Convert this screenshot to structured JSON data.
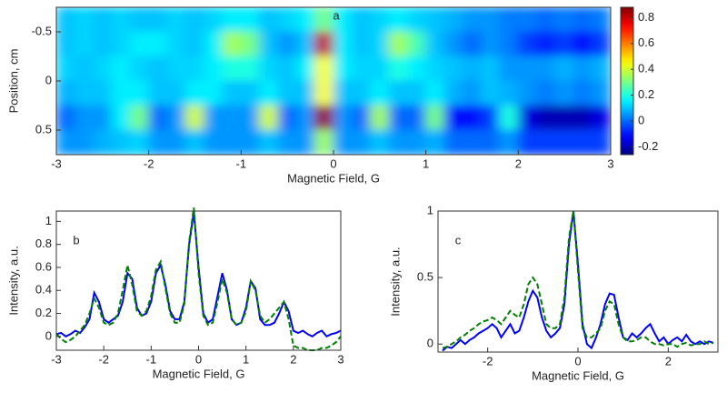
{
  "chart_data": [
    {
      "type": "heatmap",
      "annotation": "a",
      "xlabel": "Magnetic Field, G",
      "ylabel": "Position, cm",
      "colormap": "jet",
      "y_reversed": true,
      "xlim": [
        -3,
        3
      ],
      "xticks": [
        -3,
        -2,
        -1,
        0,
        1,
        2,
        3
      ],
      "ylim": [
        -0.75,
        0.75
      ],
      "yticks": [
        -0.5,
        0,
        0.5
      ],
      "clim": [
        -0.26,
        0.88
      ],
      "cticks": [
        -0.2,
        0,
        0.2,
        0.4,
        0.6,
        0.8
      ],
      "x": [
        -2.9,
        -2.7,
        -2.5,
        -2.3,
        -2.1,
        -1.9,
        -1.7,
        -1.5,
        -1.3,
        -1.1,
        -0.9,
        -0.7,
        -0.5,
        -0.3,
        -0.1,
        0.1,
        0.3,
        0.5,
        0.7,
        0.9,
        1.1,
        1.3,
        1.5,
        1.7,
        1.9,
        2.1,
        2.3,
        2.5,
        2.7,
        2.9
      ],
      "y": [
        -0.625,
        -0.375,
        -0.125,
        0.125,
        0.375,
        0.625
      ],
      "z": [
        [
          0.1,
          0.12,
          0.1,
          0.12,
          0.1,
          0.1,
          0.12,
          0.1,
          0.12,
          0.15,
          0.15,
          0.1,
          0.12,
          0.15,
          0.3,
          0.15,
          0.1,
          0.12,
          0.15,
          0.12,
          0.1,
          0.08,
          0.05,
          0.05,
          0.02,
          0.02,
          0.0,
          0.02,
          0.0,
          0.02
        ],
        [
          0.1,
          0.12,
          0.1,
          0.12,
          0.15,
          0.15,
          0.12,
          0.1,
          0.15,
          0.35,
          0.3,
          0.1,
          0.05,
          0.1,
          0.8,
          0.15,
          0.1,
          0.12,
          0.35,
          0.25,
          0.1,
          0.05,
          0.0,
          0.05,
          0.02,
          -0.05,
          -0.08,
          -0.05,
          -0.1,
          -0.05
        ],
        [
          0.12,
          0.1,
          0.12,
          0.15,
          0.12,
          0.1,
          0.12,
          0.12,
          0.15,
          0.2,
          0.2,
          0.12,
          0.1,
          0.15,
          0.45,
          0.15,
          0.12,
          0.12,
          0.2,
          0.15,
          0.12,
          0.1,
          0.08,
          0.1,
          0.05,
          0.05,
          0.05,
          0.08,
          0.05,
          0.08
        ],
        [
          0.08,
          0.1,
          0.1,
          0.15,
          0.15,
          0.1,
          0.1,
          0.15,
          0.15,
          0.1,
          0.1,
          0.15,
          0.1,
          0.1,
          0.45,
          0.1,
          0.1,
          0.15,
          0.1,
          0.1,
          0.15,
          0.08,
          0.05,
          0.1,
          0.08,
          0.05,
          0.02,
          0.05,
          0.02,
          0.05
        ],
        [
          0.0,
          0.05,
          0.05,
          0.15,
          0.3,
          0.0,
          0.05,
          0.4,
          0.05,
          0.05,
          0.05,
          0.4,
          0.0,
          0.05,
          0.85,
          0.05,
          0.0,
          0.35,
          0.0,
          0.0,
          0.3,
          -0.1,
          -0.1,
          -0.05,
          0.2,
          -0.15,
          -0.2,
          -0.2,
          -0.2,
          -0.15
        ],
        [
          0.05,
          0.05,
          0.08,
          0.1,
          0.12,
          0.05,
          0.05,
          0.1,
          0.05,
          0.05,
          0.05,
          0.1,
          0.05,
          0.05,
          0.35,
          0.05,
          0.05,
          0.1,
          0.05,
          0.05,
          0.08,
          0.0,
          0.0,
          0.0,
          0.05,
          -0.05,
          -0.05,
          -0.05,
          -0.05,
          -0.05
        ]
      ]
    },
    {
      "type": "line",
      "annotation": "b",
      "xlabel": "Magnetic Field, G",
      "ylabel": "Intensity, a.u.",
      "xlim": [
        -3,
        3
      ],
      "xticks": [
        -3,
        -2,
        -1,
        0,
        1,
        2,
        3
      ],
      "ylim": [
        -0.12,
        1.09
      ],
      "yticks": [
        0,
        0.2,
        0.4,
        0.6,
        0.8,
        1
      ],
      "x": [
        -3,
        -2.9,
        -2.8,
        -2.7,
        -2.6,
        -2.5,
        -2.4,
        -2.3,
        -2.2,
        -2.1,
        -2,
        -1.9,
        -1.8,
        -1.7,
        -1.6,
        -1.5,
        -1.4,
        -1.3,
        -1.2,
        -1.1,
        -1,
        -0.9,
        -0.8,
        -0.7,
        -0.6,
        -0.5,
        -0.4,
        -0.3,
        -0.2,
        -0.1,
        0,
        0.1,
        0.2,
        0.3,
        0.4,
        0.5,
        0.6,
        0.7,
        0.8,
        0.9,
        1,
        1.1,
        1.2,
        1.3,
        1.4,
        1.5,
        1.6,
        1.7,
        1.8,
        1.9,
        2,
        2.1,
        2.2,
        2.3,
        2.4,
        2.5,
        2.6,
        2.7,
        2.8,
        2.9,
        3
      ],
      "series": [
        {
          "color": "#0000ff",
          "dashed": false,
          "values": [
            0.02,
            0.03,
            0.0,
            0.02,
            0.05,
            0.03,
            0.08,
            0.15,
            0.38,
            0.3,
            0.15,
            0.12,
            0.15,
            0.18,
            0.3,
            0.55,
            0.5,
            0.25,
            0.18,
            0.2,
            0.3,
            0.55,
            0.62,
            0.45,
            0.22,
            0.15,
            0.15,
            0.3,
            0.8,
            1.08,
            0.6,
            0.2,
            0.12,
            0.15,
            0.35,
            0.55,
            0.4,
            0.15,
            0.1,
            0.12,
            0.25,
            0.48,
            0.42,
            0.15,
            0.1,
            0.1,
            0.12,
            0.2,
            0.3,
            0.22,
            0.05,
            0.03,
            0.05,
            0.02,
            0.0,
            0.03,
            0.05,
            0.0,
            0.02,
            0.03,
            0.05
          ]
        },
        {
          "color": "#008000",
          "dashed": true,
          "values": [
            0.02,
            -0.02,
            -0.05,
            -0.03,
            0.0,
            0.05,
            0.1,
            0.2,
            0.33,
            0.25,
            0.12,
            0.1,
            0.12,
            0.2,
            0.4,
            0.62,
            0.45,
            0.22,
            0.18,
            0.22,
            0.35,
            0.58,
            0.65,
            0.42,
            0.2,
            0.12,
            0.12,
            0.28,
            0.82,
            1.12,
            0.55,
            0.18,
            0.1,
            0.12,
            0.3,
            0.5,
            0.38,
            0.15,
            0.1,
            0.12,
            0.22,
            0.48,
            0.4,
            0.18,
            0.12,
            0.15,
            0.2,
            0.25,
            0.3,
            0.15,
            -0.08,
            -0.1,
            -0.1,
            -0.12,
            -0.12,
            -0.12,
            -0.1,
            -0.1,
            -0.08,
            -0.05,
            0.0
          ]
        }
      ]
    },
    {
      "type": "line",
      "annotation": "c",
      "xlabel": "Magnetic Field, G",
      "ylabel": "Intensity, a.u.",
      "xlim": [
        -3.1,
        3.1
      ],
      "xticks": [
        -2,
        0,
        2
      ],
      "ylim": [
        -0.06,
        1
      ],
      "yticks": [
        0,
        0.5,
        1
      ],
      "x": [
        -3,
        -2.9,
        -2.8,
        -2.7,
        -2.6,
        -2.5,
        -2.4,
        -2.3,
        -2.2,
        -2.1,
        -2,
        -1.9,
        -1.8,
        -1.7,
        -1.6,
        -1.5,
        -1.4,
        -1.3,
        -1.2,
        -1.1,
        -1,
        -0.9,
        -0.8,
        -0.7,
        -0.6,
        -0.5,
        -0.4,
        -0.3,
        -0.2,
        -0.1,
        0,
        0.1,
        0.2,
        0.3,
        0.4,
        0.5,
        0.6,
        0.7,
        0.8,
        0.9,
        1,
        1.1,
        1.2,
        1.3,
        1.4,
        1.5,
        1.6,
        1.7,
        1.8,
        1.9,
        2,
        2.1,
        2.2,
        2.3,
        2.4,
        2.5,
        2.6,
        2.7,
        2.8,
        2.9,
        3
      ],
      "series": [
        {
          "color": "#0000ff",
          "dashed": false,
          "values": [
            -0.05,
            -0.02,
            -0.03,
            0.0,
            0.03,
            0.0,
            0.03,
            0.05,
            0.08,
            0.1,
            0.12,
            0.15,
            0.12,
            0.05,
            0.1,
            0.15,
            0.08,
            0.1,
            0.2,
            0.32,
            0.4,
            0.35,
            0.2,
            0.1,
            0.05,
            0.08,
            0.12,
            0.3,
            0.75,
            1.0,
            0.6,
            0.15,
            0.0,
            -0.03,
            0.05,
            0.15,
            0.3,
            0.38,
            0.37,
            0.2,
            0.05,
            0.03,
            0.08,
            0.05,
            0.08,
            0.12,
            0.15,
            0.08,
            0.02,
            0.05,
            0.0,
            0.03,
            0.05,
            0.02,
            0.07,
            0.02,
            0.0,
            0.02,
            0.0,
            0.02,
            0.01
          ]
        },
        {
          "color": "#008000",
          "dashed": true,
          "values": [
            -0.03,
            -0.02,
            0.0,
            0.02,
            0.05,
            0.07,
            0.1,
            0.12,
            0.15,
            0.17,
            0.18,
            0.2,
            0.18,
            0.15,
            0.2,
            0.25,
            0.22,
            0.2,
            0.3,
            0.45,
            0.5,
            0.45,
            0.3,
            0.15,
            0.12,
            0.12,
            0.15,
            0.35,
            0.8,
            1.0,
            0.55,
            0.12,
            0.05,
            0.05,
            0.08,
            0.12,
            0.25,
            0.32,
            0.3,
            0.15,
            0.05,
            0.02,
            0.02,
            0.03,
            0.05,
            0.05,
            0.02,
            0.0,
            0.0,
            -0.01,
            0.0,
            0.0,
            -0.02,
            0.0,
            0.01,
            -0.01,
            0.0,
            0.0,
            0.02,
            0.0,
            0.01
          ]
        }
      ]
    }
  ]
}
